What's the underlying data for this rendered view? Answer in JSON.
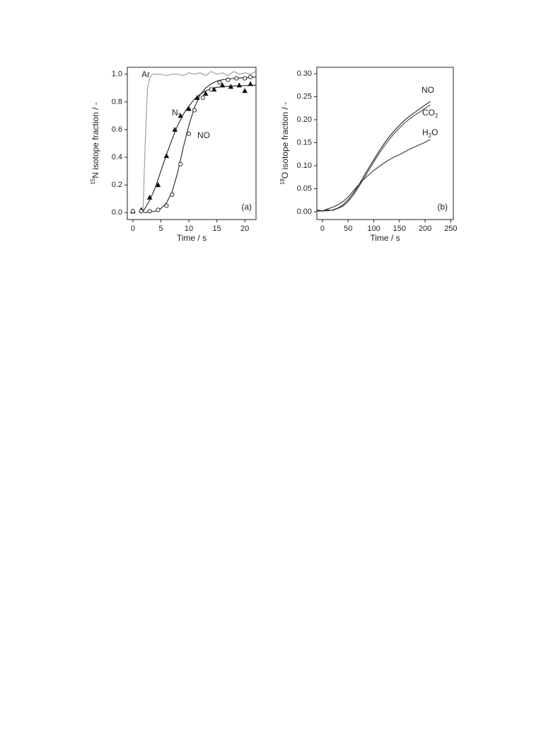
{
  "chart_data": [
    {
      "type": "line",
      "x_label": "Time / s",
      "y_label_sup": "15",
      "y_label": "N isotope fraction / -",
      "xlim": [
        -1,
        22
      ],
      "ylim": [
        -0.05,
        1.05
      ],
      "xticks": [
        0,
        5,
        10,
        15,
        20
      ],
      "yticks": [
        {
          "value": 0,
          "label": "0.0"
        },
        0.2,
        0.4,
        0.6,
        0.8,
        {
          "value": 1,
          "label": "1.0"
        }
      ],
      "annotations": [
        {
          "text": "Ar"
        },
        {
          "text": "N",
          "sub": "2"
        },
        {
          "text": "NO"
        },
        {
          "text": "(a)"
        }
      ],
      "series": [
        {
          "color": "#999999",
          "marker": "none",
          "x": [
            1.8,
            2.2,
            2.6,
            3,
            3.5,
            4,
            5,
            6,
            7,
            8,
            9,
            10,
            11,
            12,
            13,
            14,
            15,
            16,
            17,
            18,
            19,
            20,
            21,
            22
          ],
          "values": [
            0,
            0.5,
            0.9,
            0.97,
            1.0,
            1.0,
            1.0,
            0.99,
            1.0,
            1.0,
            0.99,
            1.01,
            1.0,
            1.01,
            0.99,
            1.02,
            1.0,
            1.01,
            0.99,
            1.02,
            1.0,
            1.01,
            1.0,
            1.02
          ]
        },
        {
          "color": "#222222",
          "marker": "none",
          "x": [
            1.5,
            2,
            3,
            4,
            5,
            6,
            7,
            8,
            9,
            10,
            11,
            12,
            13,
            14,
            15,
            16,
            18,
            20,
            22
          ],
          "values": [
            0,
            0.02,
            0.09,
            0.18,
            0.3,
            0.42,
            0.53,
            0.63,
            0.71,
            0.77,
            0.82,
            0.855,
            0.88,
            0.895,
            0.905,
            0.91,
            0.915,
            0.918,
            0.92
          ]
        },
        {
          "color": "#222222",
          "marker": "none",
          "x": [
            2,
            4,
            5,
            6,
            7,
            8,
            9,
            10,
            11,
            12,
            13,
            14,
            15,
            16,
            18,
            20,
            22
          ],
          "values": [
            0,
            0.01,
            0.03,
            0.07,
            0.15,
            0.29,
            0.47,
            0.63,
            0.76,
            0.85,
            0.9,
            0.93,
            0.95,
            0.96,
            0.97,
            0.975,
            0.98
          ]
        },
        {
          "color": "#111111",
          "marker": "triangle",
          "x": [
            0,
            1.5,
            3,
            4.5,
            6,
            7.5,
            8.5,
            10,
            11.5,
            13,
            14.5,
            16,
            17.5,
            19,
            20,
            21
          ],
          "values": [
            0.01,
            0.02,
            0.11,
            0.2,
            0.41,
            0.6,
            0.7,
            0.75,
            0.83,
            0.86,
            0.89,
            0.92,
            0.91,
            0.92,
            0.88,
            0.93
          ]
        },
        {
          "color": "#111111",
          "marker": "circle",
          "x": [
            0,
            1.5,
            3,
            4.5,
            6,
            7,
            8.5,
            10,
            11,
            12.5,
            14,
            15.5,
            17,
            18.5,
            20,
            21
          ],
          "values": [
            0.01,
            0.01,
            0.01,
            0.02,
            0.05,
            0.13,
            0.35,
            0.57,
            0.74,
            0.83,
            0.89,
            0.94,
            0.96,
            0.97,
            0.97,
            0.98
          ]
        }
      ]
    },
    {
      "type": "line",
      "x_label": "Time / s",
      "y_label_sup": "18",
      "y_label": "O isotope fraction / -",
      "xlim": [
        -11,
        255
      ],
      "ylim": [
        -0.017,
        0.314
      ],
      "xticks": [
        0,
        50,
        100,
        150,
        200,
        250
      ],
      "yticks": [
        {
          "value": 0,
          "label": "0.00"
        },
        0.05,
        {
          "value": 0.1,
          "label": "0.10"
        },
        0.15,
        {
          "value": 0.2,
          "label": "0.20"
        },
        0.25,
        {
          "value": 0.3,
          "label": "0.30"
        }
      ],
      "annotations": [
        {
          "text": "NO"
        },
        {
          "text": "CO",
          "sub": "2"
        },
        {
          "text": "H",
          "sub": "2",
          "tail": "O"
        },
        {
          "text": "(b)"
        }
      ],
      "series": [
        {
          "color": "#222222",
          "marker": "none",
          "x": [
            -10,
            0,
            10,
            20,
            30,
            40,
            50,
            60,
            70,
            80,
            90,
            100,
            110,
            120,
            130,
            140,
            150,
            160,
            170,
            180,
            190,
            200,
            210
          ],
          "values": [
            0.001,
            0.002,
            0.002,
            0.004,
            0.008,
            0.015,
            0.026,
            0.04,
            0.057,
            0.076,
            0.095,
            0.113,
            0.131,
            0.148,
            0.163,
            0.176,
            0.188,
            0.199,
            0.208,
            0.216,
            0.224,
            0.232,
            0.24
          ]
        },
        {
          "color": "#444444",
          "marker": "none",
          "x": [
            -10,
            0,
            10,
            20,
            30,
            40,
            50,
            60,
            70,
            80,
            90,
            100,
            110,
            120,
            130,
            140,
            150,
            160,
            170,
            180,
            190,
            200,
            210
          ],
          "values": [
            0.003,
            0.001,
            0.004,
            0.003,
            0.007,
            0.012,
            0.022,
            0.036,
            0.053,
            0.071,
            0.09,
            0.108,
            0.126,
            0.142,
            0.157,
            0.17,
            0.182,
            0.193,
            0.202,
            0.21,
            0.217,
            0.225,
            0.232
          ]
        },
        {
          "color": "#333333",
          "marker": "none",
          "x": [
            -10,
            0,
            10,
            20,
            30,
            40,
            50,
            60,
            70,
            80,
            90,
            100,
            110,
            120,
            130,
            140,
            150,
            160,
            170,
            180,
            190,
            200,
            210
          ],
          "values": [
            0.004,
            0.002,
            0.006,
            0.01,
            0.015,
            0.022,
            0.032,
            0.045,
            0.058,
            0.07,
            0.08,
            0.09,
            0.098,
            0.106,
            0.113,
            0.119,
            0.124,
            0.13,
            0.136,
            0.141,
            0.146,
            0.151,
            0.157
          ]
        }
      ]
    }
  ]
}
